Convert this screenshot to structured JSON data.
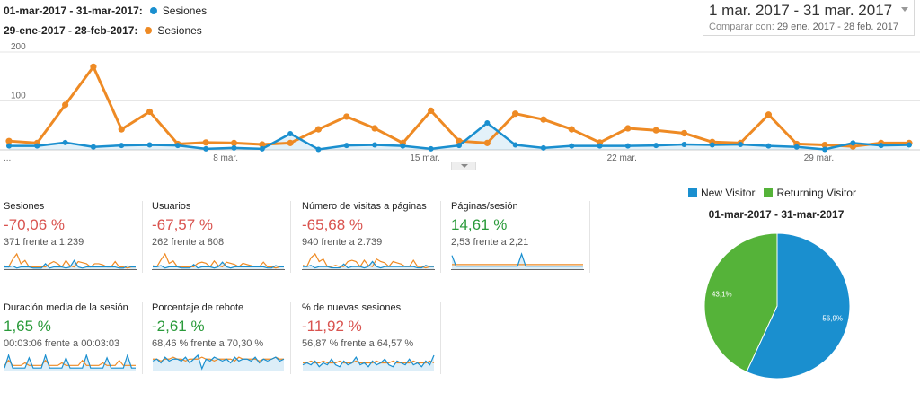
{
  "legend": {
    "current": {
      "range": "01-mar-2017 - 31-mar-2017:",
      "metric": "Sesiones",
      "color": "#1a8fcf"
    },
    "previous": {
      "range": "29-ene-2017 - 28-feb-2017:",
      "metric": "Sesiones",
      "color": "#ee8a24"
    }
  },
  "date_range": {
    "main": "1 mar. 2017 - 31 mar. 2017",
    "compare_label": "Comparar con:",
    "compare_value": "29 ene. 2017 - 28 feb. 2017"
  },
  "chart_data": [
    {
      "type": "line",
      "x_tick_labels": [
        "...",
        "8 mar.",
        "15 mar.",
        "22 mar.",
        "29 mar."
      ],
      "y_tick_labels": [
        "200",
        "100"
      ],
      "ylim": [
        0,
        200
      ],
      "series": [
        {
          "name": "Sesiones",
          "color": "#1a8fcf",
          "values": [
            8,
            8,
            15,
            6,
            9,
            10,
            9,
            2,
            4,
            2,
            33,
            1,
            9,
            10,
            8,
            2,
            9,
            55,
            10,
            4,
            8,
            8,
            8,
            9,
            11,
            10,
            11,
            8,
            6,
            1,
            14,
            9,
            10
          ]
        },
        {
          "name": "Sesiones",
          "color": "#ee8a24",
          "values": [
            18,
            14,
            92,
            170,
            42,
            78,
            12,
            15,
            14,
            11,
            14,
            42,
            68,
            44,
            14,
            80,
            18,
            14,
            74,
            62,
            42,
            15,
            44,
            40,
            34,
            16,
            14,
            72,
            12,
            10,
            7,
            14,
            14
          ]
        }
      ]
    },
    {
      "type": "pie",
      "legend": [
        "New Visitor",
        "Returning Visitor"
      ],
      "title": "01-mar-2017 - 31-mar-2017",
      "slices": [
        {
          "label": "New Visitor",
          "value": 56.9,
          "text": "56,9%",
          "color": "#1a8fcf"
        },
        {
          "label": "Returning Visitor",
          "value": 43.1,
          "text": "43,1%",
          "color": "#55b339"
        }
      ]
    }
  ],
  "tiles": [
    {
      "name": "Sesiones",
      "change": "-70,06 %",
      "trend": "neg",
      "detail": "371 frente a 1.239",
      "spark_a": [
        2,
        2,
        3,
        1,
        2,
        2,
        2,
        1,
        1,
        1,
        5,
        1,
        2,
        2,
        2,
        1,
        2,
        8,
        2,
        1,
        2,
        2,
        2,
        2,
        2,
        2,
        2,
        2,
        1,
        1,
        3,
        2,
        2
      ],
      "spark_b": [
        3,
        2,
        9,
        14,
        5,
        8,
        2,
        2,
        2,
        2,
        2,
        5,
        7,
        5,
        2,
        8,
        3,
        2,
        7,
        6,
        5,
        2,
        5,
        5,
        4,
        2,
        2,
        7,
        2,
        2,
        1,
        2,
        2
      ]
    },
    {
      "name": "Usuarios",
      "change": "-67,57 %",
      "trend": "neg",
      "detail": "262 frente a 808",
      "spark_a": [
        2,
        2,
        3,
        1,
        2,
        2,
        2,
        1,
        1,
        1,
        4,
        1,
        2,
        2,
        2,
        1,
        2,
        6,
        2,
        1,
        2,
        2,
        2,
        2,
        2,
        2,
        2,
        2,
        1,
        1,
        3,
        2,
        2
      ],
      "spark_b": [
        3,
        2,
        8,
        13,
        5,
        7,
        2,
        2,
        2,
        2,
        2,
        5,
        6,
        5,
        2,
        7,
        3,
        2,
        6,
        5,
        4,
        2,
        5,
        4,
        3,
        2,
        2,
        6,
        2,
        2,
        1,
        2,
        2
      ]
    },
    {
      "name": "Número de visitas a páginas",
      "change": "-65,68 %",
      "trend": "neg",
      "detail": "940 frente a 2.739",
      "spark_a": [
        2,
        2,
        3,
        1,
        2,
        2,
        2,
        1,
        1,
        1,
        4,
        1,
        2,
        2,
        2,
        1,
        2,
        6,
        2,
        1,
        2,
        2,
        2,
        2,
        2,
        2,
        2,
        2,
        1,
        1,
        3,
        2,
        2
      ],
      "spark_b": [
        3,
        2,
        9,
        12,
        6,
        8,
        2,
        2,
        3,
        2,
        2,
        6,
        7,
        6,
        2,
        7,
        3,
        2,
        8,
        6,
        5,
        2,
        6,
        5,
        4,
        2,
        2,
        7,
        2,
        2,
        1,
        2,
        2
      ]
    },
    {
      "name": "Páginas/sesión",
      "change": "14,61 %",
      "trend": "pos",
      "detail": "2,53 frente a 2,21",
      "spark_a": [
        9,
        2,
        2,
        2,
        2,
        2,
        2,
        2,
        2,
        2,
        2,
        2,
        2,
        2,
        2,
        2,
        2,
        10,
        2,
        2,
        2,
        2,
        2,
        2,
        2,
        2,
        2,
        2,
        2,
        2,
        2,
        2,
        2
      ],
      "spark_b": [
        3,
        3,
        3,
        3,
        3,
        3,
        3,
        3,
        3,
        3,
        3,
        3,
        3,
        3,
        3,
        3,
        3,
        3,
        3,
        3,
        3,
        3,
        3,
        3,
        3,
        3,
        3,
        3,
        3,
        3,
        3,
        3,
        3
      ]
    },
    {
      "name": "Duración media de la sesión",
      "change": "1,65 %",
      "trend": "pos",
      "detail": "00:03:06 frente a 00:03:03",
      "spark_a": [
        1,
        6,
        1,
        1,
        1,
        1,
        5,
        1,
        1,
        1,
        6,
        1,
        1,
        1,
        1,
        5,
        1,
        1,
        1,
        1,
        6,
        1,
        1,
        1,
        1,
        5,
        1,
        1,
        1,
        1,
        6,
        1,
        1
      ],
      "spark_b": [
        2,
        4,
        2,
        2,
        2,
        3,
        2,
        2,
        2,
        2,
        4,
        2,
        2,
        2,
        3,
        2,
        2,
        2,
        2,
        4,
        2,
        2,
        2,
        2,
        3,
        2,
        2,
        2,
        4,
        2,
        2,
        2,
        2
      ]
    },
    {
      "name": "Porcentaje de rebote",
      "change": "-2,61 %",
      "trend": "pos",
      "detail": "68,46 % frente a 70,30 %",
      "spark_a": [
        5,
        6,
        4,
        7,
        5,
        6,
        6,
        5,
        7,
        4,
        6,
        8,
        1,
        6,
        5,
        7,
        6,
        5,
        6,
        4,
        7,
        5,
        6,
        6,
        5,
        7,
        4,
        6,
        5,
        6,
        7,
        5,
        6
      ],
      "spark_b": [
        6,
        6,
        5,
        6,
        6,
        7,
        6,
        6,
        5,
        6,
        6,
        6,
        7,
        6,
        6,
        5,
        6,
        6,
        6,
        6,
        5,
        7,
        6,
        6,
        6,
        6,
        5,
        6,
        6,
        6,
        7,
        6,
        6
      ]
    },
    {
      "name": "% de nuevas sesiones",
      "change": "-11,92 %",
      "trend": "neg",
      "detail": "56,87 % frente a 64,57 %",
      "spark_a": [
        3,
        4,
        3,
        5,
        2,
        4,
        3,
        6,
        3,
        2,
        5,
        3,
        4,
        7,
        3,
        4,
        2,
        5,
        3,
        4,
        6,
        3,
        2,
        5,
        4,
        3,
        6,
        3,
        4,
        2,
        5,
        3,
        8
      ],
      "spark_b": [
        4,
        4,
        5,
        4,
        4,
        5,
        4,
        4,
        4,
        5,
        4,
        4,
        4,
        5,
        4,
        4,
        4,
        4,
        5,
        4,
        4,
        4,
        5,
        4,
        4,
        4,
        4,
        5,
        4,
        4,
        4,
        5,
        4
      ]
    }
  ]
}
